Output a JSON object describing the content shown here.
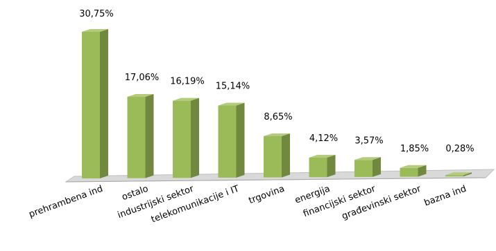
{
  "chart_data": {
    "type": "bar",
    "title": "",
    "xlabel": "",
    "ylabel": "",
    "ylim": [
      0,
      32
    ],
    "grid": false,
    "legend": "none",
    "style": "3d-column",
    "categories": [
      "prehrambena ind",
      "ostalo",
      "industrijski sektor",
      "telekomunikacije i IT",
      "trgovina",
      "energija",
      "financijski sektor",
      "građevinski sektor",
      "bazna ind"
    ],
    "values": [
      30.75,
      17.06,
      16.19,
      15.14,
      8.65,
      4.12,
      3.57,
      1.85,
      0.28
    ],
    "data_labels": [
      "30,75%",
      "17,06%",
      "16,19%",
      "15,14%",
      "8,65%",
      "4,12%",
      "3,57%",
      "1,85%",
      "0,28%"
    ],
    "colors": {
      "bar_front": "#9BBB59",
      "bar_side": "#71893F",
      "bar_top": "#B3CB7A",
      "floor": "#D9D9D9"
    }
  }
}
